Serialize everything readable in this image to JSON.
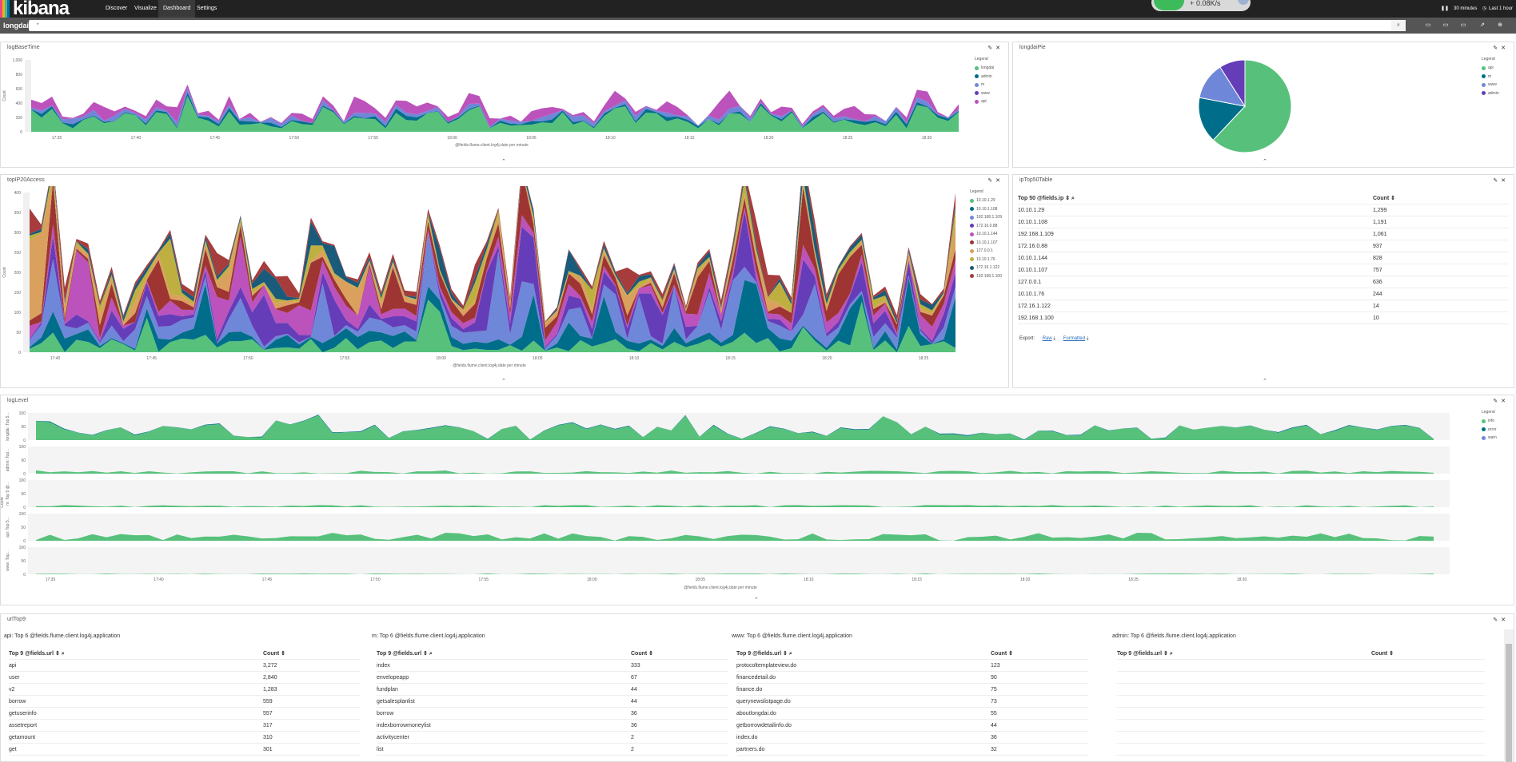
{
  "nav": {
    "brand": "kibana",
    "links": [
      "Discover",
      "Visualize",
      "Dashboard",
      "Settings"
    ],
    "active": "Dashboard",
    "rate": "0.08K/s",
    "plus": "+",
    "interval": "30 minutes",
    "timerange": "Last 1 hour"
  },
  "bar": {
    "title": "longdai",
    "query": "*"
  },
  "colors": {
    "green": "#57c17b",
    "teal": "#006e8a",
    "blue": "#6f87d8",
    "purple": "#663db8",
    "magenta": "#bc52bc",
    "red": "#9e3533",
    "orange": "#daa05d",
    "olive": "#bfaf40",
    "navy": "#1a5a7a",
    "darkred": "#a63c3c"
  },
  "panels": {
    "logBaseTime": {
      "title": "logBaseTime",
      "ylabel": "Count",
      "xlabel": "@fields.flume.client.log4j.date per minute",
      "legend_title": "Legend",
      "legend": [
        "longdai",
        "admin",
        "m",
        "www",
        "api"
      ],
      "yticks": [
        "1,000",
        "800",
        "600",
        "400",
        "200",
        "0"
      ],
      "xticks": [
        "17:35",
        "17:40",
        "17:45",
        "17:50",
        "17:55",
        "18:00",
        "18:05",
        "18:10",
        "18:15",
        "18:20",
        "18:25",
        "18:30"
      ]
    },
    "longdaiPie": {
      "title": "longdaiPie",
      "legend_title": "Legend",
      "legend": [
        "api",
        "m",
        "www",
        "admin"
      ],
      "values": [
        0.62,
        0.16,
        0.13,
        0.09
      ]
    },
    "topIP20Access": {
      "title": "topIP20Access",
      "ylabel": "Count",
      "xlabel": "@fields.flume.client.log4j.date per minute",
      "legend_title": "Legend",
      "legend": [
        "10.10.1.29",
        "10.10.1.108",
        "192.168.1.109",
        "172.16.0.88",
        "10.10.1.144",
        "10.10.1.107",
        "127.0.0.1",
        "10.10.1.76",
        "172.16.1.122",
        "192.168.1.100"
      ],
      "yticks": [
        "400",
        "350",
        "300",
        "250",
        "200",
        "150",
        "100",
        "50",
        "0"
      ],
      "xticks": [
        "17:40",
        "17:45",
        "17:50",
        "17:55",
        "18:00",
        "18:05",
        "18:10",
        "18:15",
        "18:20",
        "18:25"
      ]
    },
    "ipTop50Table": {
      "title": "ipTop50Table",
      "col1": "Top 50 @fields.ip",
      "col2": "Count",
      "rows": [
        [
          "10.10.1.29",
          "1,299"
        ],
        [
          "10.10.1.108",
          "1,191"
        ],
        [
          "192.168.1.109",
          "1,061"
        ],
        [
          "172.16.0.88",
          "937"
        ],
        [
          "10.10.1.144",
          "828"
        ],
        [
          "10.10.1.107",
          "757"
        ],
        [
          "127.0.0.1",
          "636"
        ],
        [
          "10.10.1.76",
          "244"
        ],
        [
          "172.16.1.122",
          "14"
        ],
        [
          "192.168.1.100",
          "10"
        ]
      ],
      "export": "Export:",
      "raw": "Raw",
      "formatted": "Formatted"
    },
    "logLevel": {
      "title": "logLevel",
      "ylabel": "Count",
      "xlabel": "@fields.flume.client.log4j.date per minute",
      "legend_title": "Legend",
      "legend": [
        "info",
        "error",
        "warn"
      ],
      "rows": [
        "longdai: Top 5...",
        "admin: Top...",
        "m: Top 5 @...",
        "api: Top 5...",
        "www: Top..."
      ],
      "yticks": [
        "100",
        "50",
        "0"
      ],
      "xticks": [
        "17:35",
        "17:40",
        "17:45",
        "17:50",
        "17:55",
        "18:00",
        "18:05",
        "18:10",
        "18:15",
        "18:20",
        "18:25",
        "18:30"
      ]
    },
    "urlTop9": {
      "title": "urlTop9",
      "tables": [
        {
          "caption": "api: Top 6 @fields.flume.client.log4j.application",
          "col1": "Top 9 @fields.url",
          "col2": "Count",
          "rows": [
            [
              "api",
              "3,272"
            ],
            [
              "user",
              "2,840"
            ],
            [
              "v2",
              "1,283"
            ],
            [
              "borrow",
              "559"
            ],
            [
              "getuserinfo",
              "557"
            ],
            [
              "assetreport",
              "317"
            ],
            [
              "getamount",
              "310"
            ],
            [
              "get",
              "301"
            ]
          ]
        },
        {
          "caption": "m: Top 6 @fields.flume.client.log4j.application",
          "col1": "Top 9 @fields.url",
          "col2": "Count",
          "rows": [
            [
              "index",
              "333"
            ],
            [
              "envelopeapp",
              "67"
            ],
            [
              "fundplan",
              "44"
            ],
            [
              "getsalesplanlist",
              "44"
            ],
            [
              "borrow",
              "36"
            ],
            [
              "indexborrowmoneylist",
              "36"
            ],
            [
              "activitycenter",
              "2"
            ],
            [
              "list",
              "2"
            ]
          ]
        },
        {
          "caption": "www: Top 6 @fields.flume.client.log4j.application",
          "col1": "Top 9 @fields.url",
          "col2": "Count",
          "rows": [
            [
              "protocoltemplateview.do",
              "123"
            ],
            [
              "financedetail.do",
              "90"
            ],
            [
              "finance.do",
              "75"
            ],
            [
              "querynewslistpage.do",
              "73"
            ],
            [
              "aboutlongdai.do",
              "55"
            ],
            [
              "getborrowdetailinfo.do",
              "44"
            ],
            [
              "index.do",
              "36"
            ],
            [
              "partners.do",
              "32"
            ]
          ]
        },
        {
          "caption": "admin: Top 6 @fields.flume.client.log4j.application",
          "col1": "Top 9 @fields.url",
          "col2": "Count",
          "rows": [
            [
              "",
              ""
            ],
            [
              "",
              ""
            ],
            [
              "",
              ""
            ],
            [
              "",
              ""
            ],
            [
              "",
              ""
            ],
            [
              "",
              ""
            ],
            [
              "",
              ""
            ],
            [
              "",
              ""
            ]
          ]
        }
      ]
    }
  }
}
